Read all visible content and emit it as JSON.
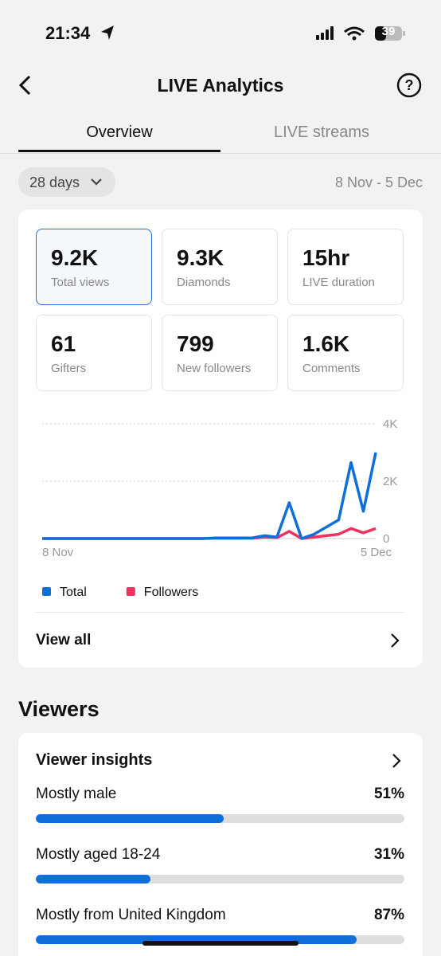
{
  "status": {
    "time": "21:34",
    "battery": "39"
  },
  "header": {
    "title": "LIVE Analytics"
  },
  "tabs": [
    "Overview",
    "LIVE streams"
  ],
  "range": {
    "period": "28 days",
    "dates": "8 Nov - 5 Dec"
  },
  "metrics": [
    {
      "value": "9.2K",
      "label": "Total views"
    },
    {
      "value": "9.3K",
      "label": "Diamonds"
    },
    {
      "value": "15hr",
      "label": "LIVE duration"
    },
    {
      "value": "61",
      "label": "Gifters"
    },
    {
      "value": "799",
      "label": "New followers"
    },
    {
      "value": "1.6K",
      "label": "Comments"
    }
  ],
  "chart_data": {
    "type": "line",
    "categories": [
      "8 Nov",
      null,
      null,
      null,
      null,
      null,
      null,
      null,
      null,
      null,
      null,
      null,
      null,
      null,
      null,
      null,
      null,
      null,
      null,
      null,
      null,
      null,
      null,
      null,
      null,
      null,
      null,
      "5 Dec"
    ],
    "series": [
      {
        "name": "Total",
        "color": "#0f6fd9",
        "values": [
          0,
          0,
          0,
          0,
          0,
          0,
          0,
          0,
          0,
          0,
          0,
          0,
          0,
          0,
          20,
          20,
          20,
          20,
          100,
          50,
          1250,
          0,
          150,
          400,
          650,
          2650,
          950,
          3000
        ]
      },
      {
        "name": "Followers",
        "color": "#f2305e",
        "values": [
          0,
          0,
          0,
          0,
          0,
          0,
          0,
          0,
          0,
          0,
          0,
          0,
          0,
          0,
          10,
          10,
          10,
          10,
          50,
          30,
          250,
          0,
          50,
          100,
          150,
          350,
          200,
          350
        ]
      }
    ],
    "ylim": [
      0,
      4000
    ],
    "yticks": [
      0,
      {
        "value": 2000,
        "label": "2K"
      },
      {
        "value": 4000,
        "label": "4K"
      }
    ],
    "grid": true
  },
  "view_all": "View all",
  "viewers": {
    "title": "Viewers",
    "card_title": "Viewer insights",
    "items": [
      {
        "label": "Mostly male",
        "percent": 51,
        "percent_label": "51%"
      },
      {
        "label": "Mostly aged 18-24",
        "percent": 31,
        "percent_label": "31%"
      },
      {
        "label": "Mostly from United Kingdom",
        "percent": 87,
        "percent_label": "87%"
      }
    ]
  }
}
